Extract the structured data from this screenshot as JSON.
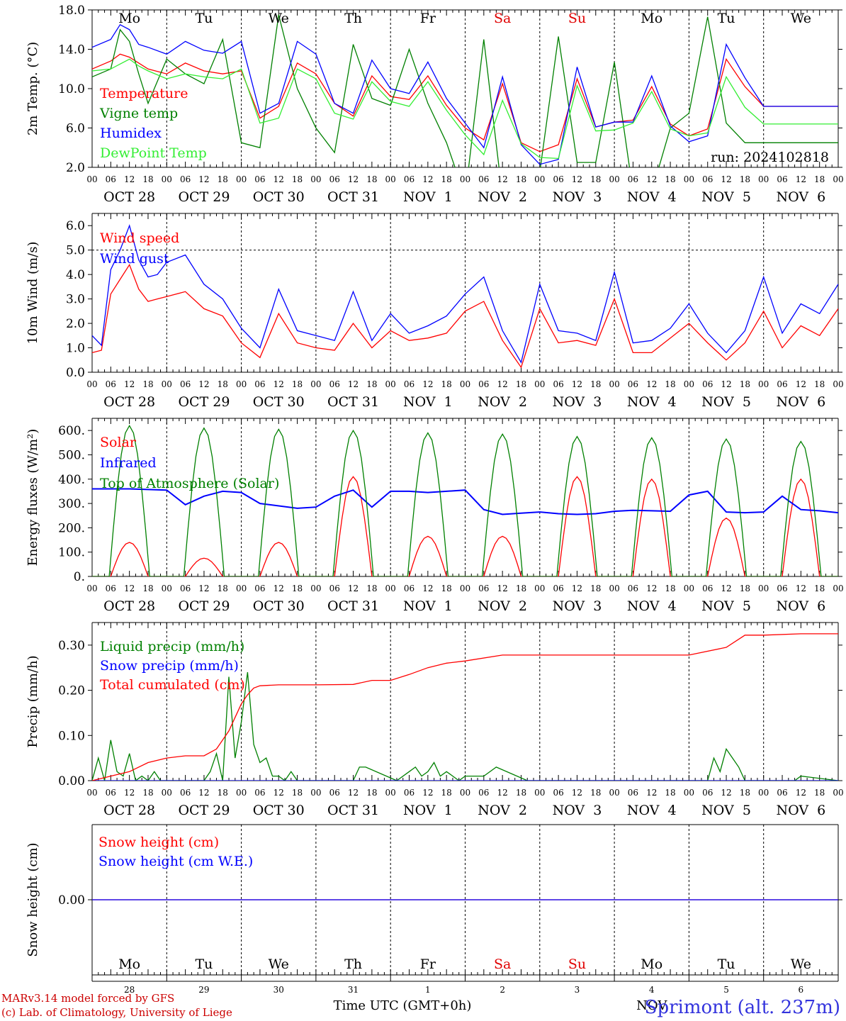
{
  "run_label": "run: 2024102818",
  "days": [
    "Mo",
    "Tu",
    "We",
    "Th",
    "Fr",
    "Sa",
    "Su",
    "Mo",
    "Tu",
    "We"
  ],
  "weekend_days": [
    5,
    6
  ],
  "weekend_color": "#e00000",
  "date_labels": [
    "OCT 28",
    "OCT 29",
    "OCT 30",
    "OCT 31",
    "NOV  1",
    "NOV  2",
    "NOV  3",
    "NOV  4",
    "NOV  5",
    "NOV  6"
  ],
  "hour_ticks": [
    "00",
    "06",
    "12",
    "18"
  ],
  "last_hour_tick": "00",
  "snow_day_numbers": [
    "28",
    "29",
    "30",
    "31",
    "1",
    "2",
    "3",
    "4",
    "5",
    "6"
  ],
  "snow_month_label": "NOV",
  "x_axis_title": "Time UTC (GMT+0h)",
  "credits": [
    "MARv3.14 model forced by GFS",
    "(c) Lab. of Climatology, University of Liege"
  ],
  "station": "Sprimont (alt. 237m)",
  "chart_data": [
    {
      "type": "line",
      "ylabel": "2m Temp. (°C)",
      "ylim": [
        2.0,
        18.0
      ],
      "yticks": [
        "2.0",
        "6.0",
        "10.0",
        "14.0",
        "18.0"
      ],
      "ytick_values": [
        2,
        6,
        10,
        14,
        18
      ],
      "x_unit": "hours since OCT 28 00 UTC",
      "series": [
        {
          "name": "Temperature",
          "color": "#ff0000",
          "x": [
            0,
            6,
            9,
            12,
            15,
            18,
            24,
            30,
            36,
            42,
            48,
            54,
            60,
            66,
            72,
            78,
            84,
            90,
            96,
            102,
            108,
            114,
            120,
            126,
            132,
            138,
            144,
            150,
            156,
            162,
            168,
            174,
            180,
            186,
            192,
            198,
            204,
            210,
            216,
            222,
            228,
            234,
            240
          ],
          "y": [
            12.0,
            12.8,
            13.5,
            13.2,
            12.6,
            12.0,
            11.5,
            12.6,
            11.8,
            11.5,
            11.8,
            7.0,
            8.2,
            12.6,
            11.5,
            8.5,
            7.2,
            11.3,
            9.2,
            8.9,
            11.3,
            8.3,
            6.0,
            4.8,
            10.5,
            4.5,
            3.6,
            4.3,
            11.0,
            6.1,
            6.6,
            6.8,
            10.2,
            6.4,
            5.2,
            5.9,
            13.0,
            10.2,
            8.2,
            8.2,
            8.2,
            8.2,
            8.2
          ]
        },
        {
          "name": "Vigne temp",
          "color": "#008000",
          "x": [
            0,
            6,
            9,
            12,
            15,
            18,
            24,
            30,
            36,
            42,
            48,
            54,
            60,
            66,
            72,
            78,
            84,
            90,
            96,
            102,
            108,
            114,
            120,
            126,
            132,
            138,
            144,
            150,
            156,
            162,
            168,
            174,
            180,
            186,
            192,
            198,
            204,
            210,
            216,
            222,
            228,
            234,
            240
          ],
          "y": [
            11.2,
            12.0,
            16.0,
            14.8,
            11.5,
            8.5,
            13.0,
            11.5,
            10.5,
            15.0,
            4.5,
            4.0,
            17.5,
            10.0,
            6.0,
            3.5,
            14.5,
            9.0,
            8.3,
            14.0,
            8.5,
            4.5,
            -1.0,
            15.0,
            -1.0,
            1.8,
            1.5,
            15.3,
            2.5,
            2.5,
            12.7,
            -0.5,
            -0.5,
            6.0,
            7.5,
            17.3,
            6.5,
            4.5,
            4.5,
            4.5,
            4.5,
            4.5,
            4.5
          ]
        },
        {
          "name": "Humidex",
          "color": "#0000ff",
          "x": [
            0,
            6,
            9,
            12,
            15,
            18,
            24,
            30,
            36,
            42,
            48,
            54,
            60,
            66,
            72,
            78,
            84,
            90,
            96,
            102,
            108,
            114,
            120,
            126,
            132,
            138,
            144,
            150,
            156,
            162,
            168,
            174,
            180,
            186,
            192,
            198,
            204,
            210,
            216,
            222,
            228,
            234,
            240
          ],
          "y": [
            14.2,
            15.0,
            16.5,
            16.0,
            14.5,
            14.2,
            13.5,
            14.8,
            13.9,
            13.6,
            14.8,
            7.5,
            8.5,
            14.8,
            13.5,
            8.5,
            7.5,
            12.9,
            10.0,
            9.5,
            12.7,
            9.0,
            6.5,
            4.0,
            11.2,
            4.3,
            2.3,
            2.8,
            12.2,
            6.1,
            6.6,
            6.6,
            11.3,
            6.2,
            4.6,
            5.2,
            14.5,
            11.1,
            8.2,
            8.2,
            8.2,
            8.2,
            8.2
          ]
        },
        {
          "name": "DewPoint Temp",
          "color": "#33ee33",
          "x": [
            0,
            6,
            9,
            12,
            15,
            18,
            24,
            30,
            36,
            42,
            48,
            54,
            60,
            66,
            72,
            78,
            84,
            90,
            96,
            102,
            108,
            114,
            120,
            126,
            132,
            138,
            144,
            150,
            156,
            162,
            168,
            174,
            180,
            186,
            192,
            198,
            204,
            210,
            216,
            222,
            228,
            234,
            240
          ],
          "y": [
            11.8,
            12.0,
            12.5,
            13.0,
            12.3,
            11.8,
            11.0,
            11.5,
            11.2,
            11.0,
            12.0,
            6.5,
            7.0,
            12.0,
            11.0,
            7.5,
            6.9,
            10.7,
            8.7,
            8.2,
            10.7,
            7.8,
            5.3,
            3.3,
            8.8,
            4.4,
            3.0,
            2.9,
            10.3,
            5.7,
            5.8,
            6.5,
            9.7,
            5.9,
            5.2,
            5.5,
            11.2,
            8.1,
            6.4,
            6.4,
            6.4,
            6.4,
            6.4
          ]
        }
      ]
    },
    {
      "type": "line",
      "ylabel": "10m Wind (m/s)",
      "ylim": [
        0.0,
        6.5
      ],
      "yticks": [
        "0.0",
        "1.0",
        "2.0",
        "3.0",
        "4.0",
        "5.0",
        "6.0"
      ],
      "ytick_values": [
        0,
        1,
        2,
        3,
        4,
        5,
        6
      ],
      "dashed_reference": 5.0,
      "x_unit": "hours since OCT 28 00 UTC",
      "series": [
        {
          "name": "Wind speed",
          "color": "#ff0000",
          "x": [
            0,
            3,
            6,
            9,
            12,
            15,
            18,
            21,
            24,
            30,
            36,
            42,
            48,
            54,
            60,
            66,
            72,
            78,
            84,
            90,
            96,
            102,
            108,
            114,
            120,
            126,
            132,
            138,
            144,
            150,
            156,
            162,
            168,
            174,
            180,
            186,
            192,
            198,
            204,
            210,
            216,
            222,
            228,
            234,
            240
          ],
          "y": [
            0.8,
            0.9,
            3.2,
            3.8,
            4.4,
            3.4,
            2.9,
            3.0,
            3.1,
            3.3,
            2.6,
            2.3,
            1.2,
            0.6,
            2.4,
            1.2,
            1.0,
            0.9,
            2.0,
            1.0,
            1.7,
            1.3,
            1.4,
            1.6,
            2.5,
            2.9,
            1.3,
            0.2,
            2.6,
            1.2,
            1.3,
            1.1,
            3.0,
            0.8,
            0.8,
            1.4,
            2.0,
            1.2,
            0.5,
            1.2,
            2.5,
            1.0,
            1.9,
            1.5,
            2.6
          ]
        },
        {
          "name": "Wind gust",
          "color": "#0000ff",
          "x": [
            0,
            3,
            6,
            9,
            12,
            15,
            18,
            21,
            24,
            30,
            36,
            42,
            48,
            54,
            60,
            66,
            72,
            78,
            84,
            90,
            96,
            102,
            108,
            114,
            120,
            126,
            132,
            138,
            144,
            150,
            156,
            162,
            168,
            174,
            180,
            186,
            192,
            198,
            204,
            210,
            216,
            222,
            228,
            234,
            240
          ],
          "y": [
            1.5,
            1.1,
            4.2,
            5.0,
            6.0,
            4.6,
            3.9,
            4.0,
            4.5,
            4.8,
            3.6,
            3.0,
            1.8,
            1.0,
            3.4,
            1.7,
            1.5,
            1.3,
            3.3,
            1.3,
            2.4,
            1.6,
            1.9,
            2.3,
            3.2,
            3.9,
            1.7,
            0.4,
            3.6,
            1.7,
            1.6,
            1.3,
            4.1,
            1.2,
            1.3,
            1.8,
            2.8,
            1.6,
            0.8,
            1.7,
            3.9,
            1.6,
            2.8,
            2.4,
            3.6
          ]
        }
      ]
    },
    {
      "type": "line",
      "ylabel": "Energy fluxes (W/m²)",
      "ylim": [
        0,
        650
      ],
      "yticks": [
        "0.",
        "100.",
        "200.",
        "300.",
        "400.",
        "500.",
        "600."
      ],
      "ytick_values": [
        0,
        100,
        200,
        300,
        400,
        500,
        600
      ],
      "x_unit": "hours since OCT 28 00 UTC",
      "series": [
        {
          "name": "Solar",
          "color": "#ff0000",
          "day_peaks": [
            140,
            75,
            140,
            410,
            165,
            165,
            410,
            400,
            240,
            400
          ]
        },
        {
          "name": "Infrared",
          "color": "#0000ff",
          "x": [
            0,
            12,
            24,
            30,
            36,
            42,
            48,
            54,
            66,
            72,
            78,
            84,
            90,
            96,
            102,
            108,
            114,
            120,
            126,
            132,
            138,
            144,
            150,
            156,
            162,
            168,
            174,
            180,
            186,
            192,
            198,
            204,
            210,
            216,
            222,
            228,
            234,
            240
          ],
          "y": [
            360,
            360,
            355,
            295,
            330,
            350,
            345,
            300,
            280,
            285,
            330,
            355,
            285,
            350,
            350,
            345,
            350,
            355,
            275,
            255,
            260,
            265,
            258,
            255,
            258,
            268,
            272,
            270,
            268,
            335,
            350,
            265,
            262,
            265,
            330,
            275,
            270,
            262
          ]
        },
        {
          "name": "Top of Atmosphere (Solar)",
          "color": "#008000",
          "day_peaks": [
            620,
            610,
            605,
            600,
            590,
            585,
            575,
            570,
            565,
            555
          ]
        }
      ]
    },
    {
      "type": "line",
      "ylabel": "Precip (mm/h)",
      "ylim": [
        0.0,
        0.35
      ],
      "yticks": [
        "0.00",
        "0.10",
        "0.20",
        "0.30"
      ],
      "ytick_values": [
        0,
        0.1,
        0.2,
        0.3
      ],
      "x_unit": "hours since OCT 28 00 UTC",
      "series": [
        {
          "name": "Liquid precip (mm/h)",
          "color": "#008000",
          "x": [
            0,
            2,
            4,
            6,
            8,
            10,
            12,
            14,
            16,
            18,
            20,
            22,
            24,
            30,
            36,
            38,
            40,
            42,
            44,
            46,
            48,
            50,
            52,
            54,
            56,
            58,
            60,
            62,
            64,
            66,
            68,
            70,
            72,
            80,
            84,
            86,
            88,
            98,
            102,
            104,
            106,
            108,
            110,
            112,
            114,
            116,
            118,
            120,
            126,
            130,
            140,
            196,
            198,
            200,
            202,
            204,
            206,
            208,
            210,
            212,
            222,
            226,
            228,
            240
          ],
          "y": [
            0,
            0.05,
            0,
            0.09,
            0.02,
            0.01,
            0.06,
            0,
            0.01,
            0,
            0.02,
            0,
            0,
            0,
            0,
            0.02,
            0.06,
            0,
            0.23,
            0.05,
            0.13,
            0.24,
            0.08,
            0.04,
            0.05,
            0.01,
            0.01,
            0,
            0.02,
            0,
            0,
            0,
            0,
            0,
            0,
            0.03,
            0.03,
            0,
            0.02,
            0.03,
            0.01,
            0.02,
            0.04,
            0.01,
            0.02,
            0.01,
            0,
            0.01,
            0.01,
            0.03,
            0,
            0,
            0,
            0.05,
            0.02,
            0.07,
            0.05,
            0.03,
            0,
            0,
            0,
            0,
            0.01,
            0
          ]
        },
        {
          "name": "Snow precip (mm/h)",
          "color": "#0000ff",
          "x": [
            0,
            240
          ],
          "y": [
            0,
            0
          ]
        },
        {
          "name": "Total cumulated (cm)",
          "color": "#ff0000",
          "x": [
            0,
            6,
            12,
            18,
            24,
            30,
            36,
            40,
            44,
            46,
            48,
            50,
            52,
            54,
            60,
            72,
            84,
            90,
            96,
            102,
            108,
            114,
            120,
            132,
            144,
            156,
            168,
            192,
            204,
            210,
            216,
            228,
            240
          ],
          "y": [
            0,
            0.01,
            0.02,
            0.04,
            0.05,
            0.055,
            0.055,
            0.07,
            0.11,
            0.14,
            0.17,
            0.19,
            0.205,
            0.21,
            0.212,
            0.212,
            0.213,
            0.222,
            0.222,
            0.235,
            0.25,
            0.26,
            0.265,
            0.278,
            0.278,
            0.278,
            0.278,
            0.278,
            0.295,
            0.322,
            0.322,
            0.325,
            0.325
          ]
        }
      ]
    },
    {
      "type": "line",
      "ylabel": "Snow height (cm)",
      "ylim": [
        -1,
        1
      ],
      "yticks": [
        "0.00"
      ],
      "ytick_values": [
        0
      ],
      "x_unit": "hours since OCT 28 00 UTC",
      "series": [
        {
          "name": "Snow height (cm)",
          "color": "#ff0000",
          "x": [
            0,
            240
          ],
          "y": [
            0,
            0
          ]
        },
        {
          "name": "Snow height (cm W.E.)",
          "color": "#0000ff",
          "x": [
            0,
            240
          ],
          "y": [
            0,
            0
          ]
        }
      ]
    }
  ]
}
